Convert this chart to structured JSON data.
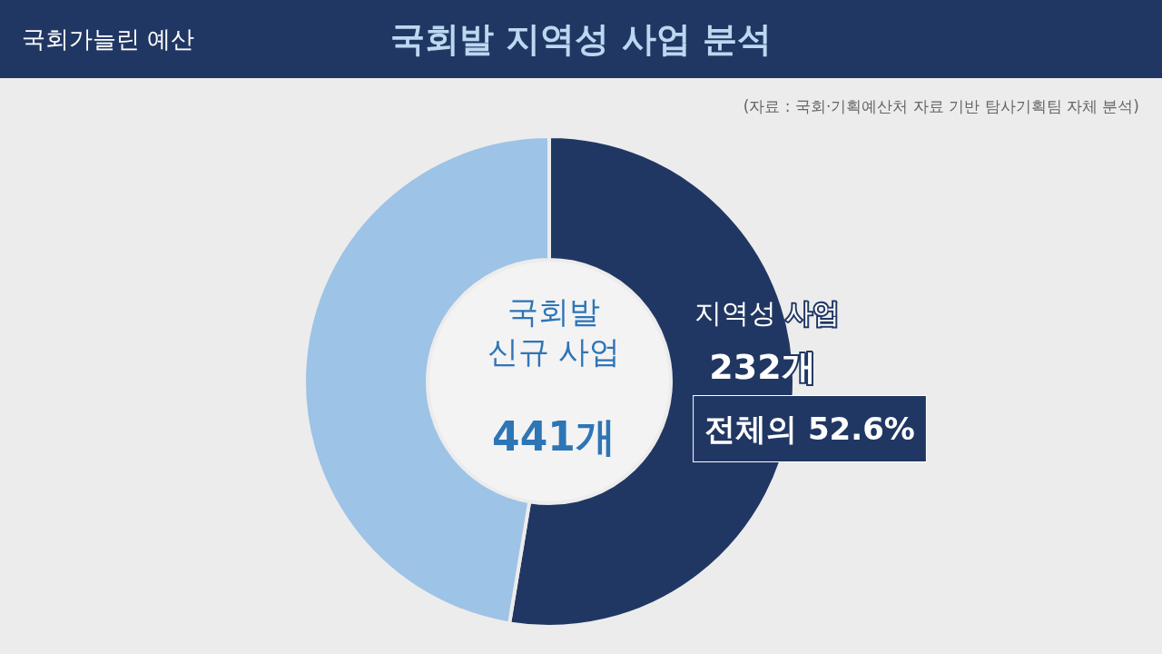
{
  "chart_data": {
    "type": "donut",
    "title": "국회발 지역성 사업 분석",
    "subtitle": "국회가늘린 예산",
    "categories": [
      "지역성 사업",
      null
    ],
    "values": [
      52.6,
      47.4
    ],
    "colors": [
      "#213763",
      "#9dc3e6"
    ],
    "annotations": [
      "국회발\n신규 사업",
      "441개",
      "232개",
      "전체의 52.6%",
      "(자료 : 국회·기획예산처 자료 기반 탐사기획팀 자체 분석)"
    ],
    "legend": false
  }
}
